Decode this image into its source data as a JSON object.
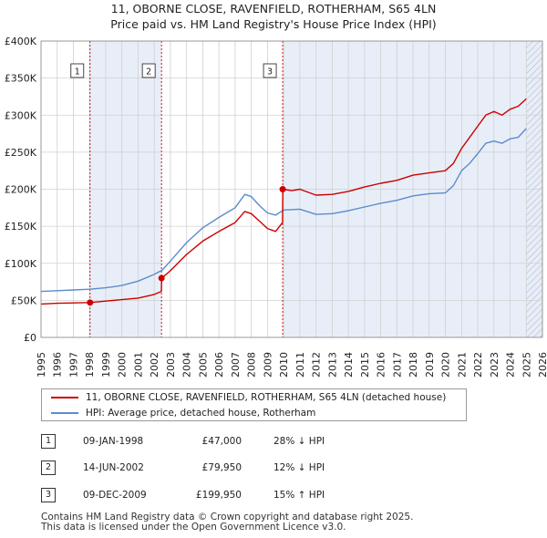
{
  "title_line1": "11, OBORNE CLOSE, RAVENFIELD, ROTHERHAM, S65 4LN",
  "title_line2": "Price paid vs. HM Land Registry's House Price Index (HPI)",
  "colors": {
    "property": "#cc0000",
    "hpi": "#5b8ccc",
    "marker_box": "#333333",
    "shade": "#e8eef8",
    "grid": "#d0d0d0"
  },
  "legend": {
    "property": "11, OBORNE CLOSE, RAVENFIELD, ROTHERHAM, S65 4LN (detached house)",
    "hpi": "HPI: Average price, detached house, Rotherham"
  },
  "sales": [
    {
      "num": "1",
      "date": "09-JAN-1998",
      "price": "£47,000",
      "hpi": "28% ↓ HPI"
    },
    {
      "num": "2",
      "date": "14-JUN-2002",
      "price": "£79,950",
      "hpi": "12% ↓ HPI"
    },
    {
      "num": "3",
      "date": "09-DEC-2009",
      "price": "£199,950",
      "hpi": "15% ↑ HPI"
    }
  ],
  "footer_line1": "Contains HM Land Registry data © Crown copyright and database right 2025.",
  "footer_line2": "This data is licensed under the Open Government Licence v3.0.",
  "chart_data": {
    "type": "line",
    "title": "11, OBORNE CLOSE, RAVENFIELD, ROTHERHAM, S65 4LN",
    "subtitle": "Price paid vs. HM Land Registry's House Price Index (HPI)",
    "xlabel": "",
    "ylabel": "",
    "xlim": [
      1995,
      2026
    ],
    "ylim": [
      0,
      400000
    ],
    "grid": true,
    "x_ticks": [
      1995,
      1996,
      1997,
      1998,
      1999,
      2000,
      2001,
      2002,
      2003,
      2004,
      2005,
      2006,
      2007,
      2008,
      2009,
      2010,
      2011,
      2012,
      2013,
      2014,
      2015,
      2016,
      2017,
      2018,
      2019,
      2020,
      2021,
      2022,
      2023,
      2024,
      2025,
      2026
    ],
    "y_ticks": [
      {
        "value": 0,
        "label": "£0"
      },
      {
        "value": 50000,
        "label": "£50K"
      },
      {
        "value": 100000,
        "label": "£100K"
      },
      {
        "value": 150000,
        "label": "£150K"
      },
      {
        "value": 200000,
        "label": "£200K"
      },
      {
        "value": 250000,
        "label": "£250K"
      },
      {
        "value": 300000,
        "label": "£300K"
      },
      {
        "value": 350000,
        "label": "£350K"
      },
      {
        "value": 400000,
        "label": "£400K"
      }
    ],
    "shaded_ranges": [
      {
        "from": 1998.03,
        "to": 2002.45
      },
      {
        "from": 2009.94,
        "to": 2025.0
      },
      {
        "from": 2025.0,
        "to": 2026.0
      }
    ],
    "hatched_range": {
      "from": 2025.0,
      "to": 2026.0
    },
    "series": [
      {
        "name": "HPI: Average price, detached house, Rotherham",
        "x": [
          1995,
          1996,
          1997,
          1998,
          1999,
          2000,
          2001,
          2002,
          2002.5,
          2003,
          2004,
          2005,
          2006,
          2007,
          2007.6,
          2008,
          2008.5,
          2009,
          2009.5,
          2010,
          2011,
          2012,
          2013,
          2014,
          2015,
          2016,
          2017,
          2018,
          2019,
          2020,
          2020.5,
          2021,
          2021.5,
          2022,
          2022.5,
          2023,
          2023.5,
          2024,
          2024.5,
          2025
        ],
        "values": [
          62000,
          63000,
          64000,
          65000,
          67000,
          70000,
          76000,
          85000,
          91000,
          103000,
          128000,
          148000,
          162000,
          175000,
          193000,
          190000,
          178000,
          168000,
          165000,
          172000,
          173000,
          166000,
          167000,
          171000,
          176000,
          181000,
          185000,
          191000,
          194000,
          195000,
          205000,
          225000,
          235000,
          248000,
          262000,
          265000,
          262000,
          268000,
          270000,
          282000
        ]
      },
      {
        "name": "11, OBORNE CLOSE, RAVENFIELD, ROTHERHAM, S65 4LN (detached house)",
        "x": [
          1995,
          1996,
          1997,
          1998.03,
          1999,
          2000,
          2001,
          2002,
          2002.44,
          2002.46,
          2003,
          2004,
          2005,
          2006,
          2007,
          2007.6,
          2008,
          2008.5,
          2009,
          2009.5,
          2009.93,
          2009.95,
          2010.5,
          2011,
          2012,
          2013,
          2014,
          2015,
          2016,
          2017,
          2018,
          2019,
          2020,
          2020.5,
          2021,
          2021.5,
          2022,
          2022.5,
          2023,
          2023.5,
          2024,
          2024.5,
          2025
        ],
        "values": [
          45000,
          46000,
          46500,
          47000,
          49000,
          51000,
          53000,
          58000,
          62000,
          79950,
          90000,
          112000,
          130000,
          143000,
          155000,
          170000,
          167000,
          157000,
          147000,
          143000,
          155000,
          199950,
          198000,
          200000,
          192000,
          193000,
          197000,
          203000,
          208000,
          212000,
          219000,
          222000,
          225000,
          235000,
          255000,
          270000,
          285000,
          300000,
          305000,
          300000,
          308000,
          312000,
          322000
        ]
      }
    ],
    "sale_markers": [
      {
        "label": "1",
        "x": 1998.03,
        "value": 47000
      },
      {
        "label": "2",
        "x": 2002.45,
        "value": 79950
      },
      {
        "label": "3",
        "x": 2009.94,
        "value": 199950
      }
    ]
  }
}
